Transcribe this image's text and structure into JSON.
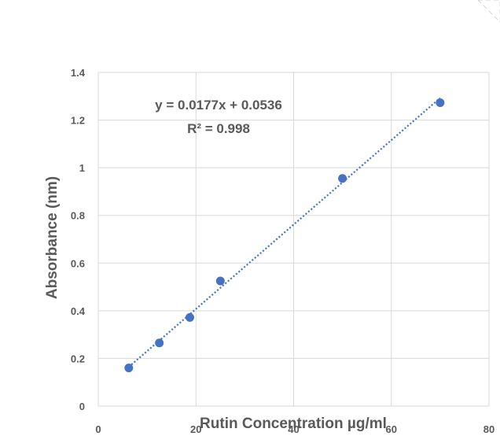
{
  "chart_data": {
    "type": "scatter",
    "xlabel": "Rutin Concentration µg/ml",
    "ylabel": "Absorbance (nm)",
    "xlim": [
      0,
      80
    ],
    "ylim": [
      0,
      1.4
    ],
    "x_ticks": [
      "0",
      "20",
      "40",
      "60",
      "80"
    ],
    "y_ticks": [
      "0",
      "0.2",
      "0.4",
      "0.6",
      "0.8",
      "1",
      "1.2",
      "1.4"
    ],
    "grid": true,
    "series": [
      {
        "x": [
          6.25,
          12.5,
          18.75,
          25,
          50,
          70
        ],
        "y": [
          0.16,
          0.265,
          0.372,
          0.525,
          0.955,
          1.273
        ]
      }
    ],
    "trendline": {
      "type": "linear",
      "equation": "y = 0.0177x + 0.0536",
      "r_squared": "R² = 0.998",
      "slope": 0.0177,
      "intercept": 0.0536,
      "x_range": [
        6.25,
        70
      ]
    },
    "colors": {
      "marker": "#4472C4",
      "trendline": "#4472C4",
      "grid": "#d9d9d9",
      "text": "#595959"
    }
  }
}
